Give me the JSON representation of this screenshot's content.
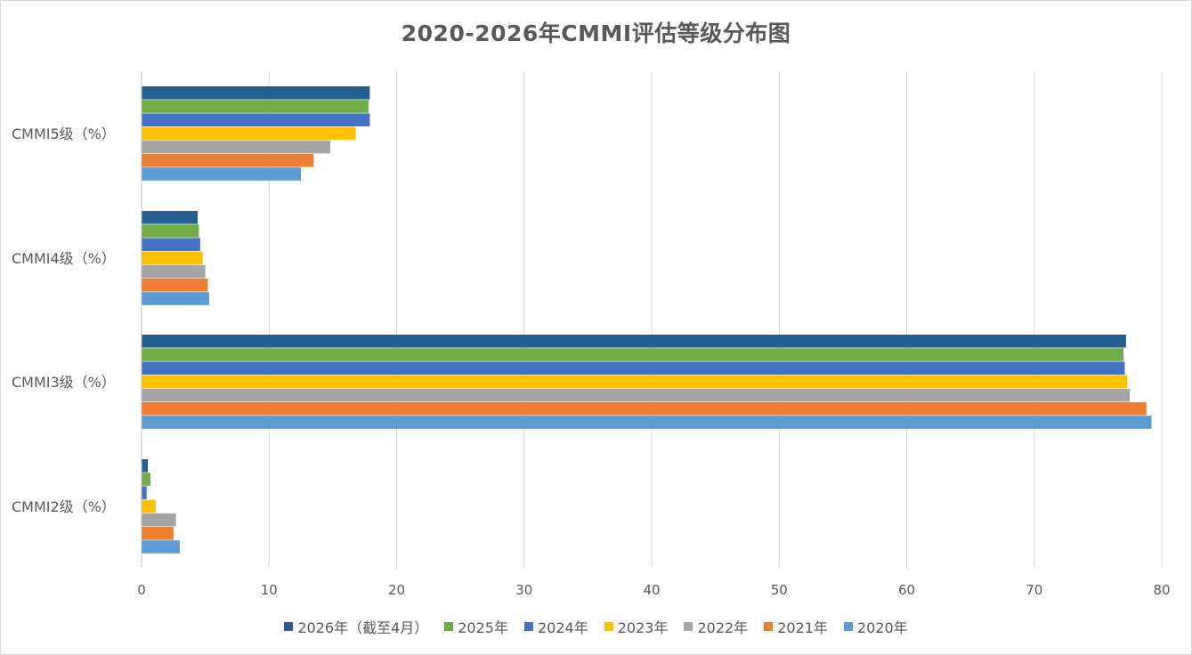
{
  "chart_data": {
    "type": "bar",
    "orientation": "horizontal",
    "title": "2020-2026年CMMI评估等级分布图",
    "categories": [
      "CMMI5级（%）",
      "CMMI4级（%）",
      "CMMI3级（%）",
      "CMMI2级（%）"
    ],
    "series": [
      {
        "name": "2026年（截至4月）",
        "color": "#255e91",
        "values": [
          17.9,
          4.4,
          77.2,
          0.5
        ]
      },
      {
        "name": "2025年",
        "color": "#70ad47",
        "values": [
          17.8,
          4.5,
          77.0,
          0.7
        ]
      },
      {
        "name": "2024年",
        "color": "#4472c4",
        "values": [
          17.9,
          4.6,
          77.1,
          0.4
        ]
      },
      {
        "name": "2023年",
        "color": "#ffc000",
        "values": [
          16.8,
          4.8,
          77.3,
          1.1
        ]
      },
      {
        "name": "2022年",
        "color": "#a5a5a5",
        "values": [
          14.8,
          5.0,
          77.5,
          2.7
        ]
      },
      {
        "name": "2021年",
        "color": "#ed7d31",
        "values": [
          13.5,
          5.2,
          78.8,
          2.5
        ]
      },
      {
        "name": "2020年",
        "color": "#5b9bd5",
        "values": [
          12.5,
          5.3,
          79.2,
          3.0
        ]
      }
    ],
    "xlim": [
      0,
      80
    ],
    "xticks": [
      "0",
      "10",
      "20",
      "30",
      "40",
      "50",
      "60",
      "70",
      "80"
    ],
    "grid": true,
    "legend_position": "bottom"
  }
}
